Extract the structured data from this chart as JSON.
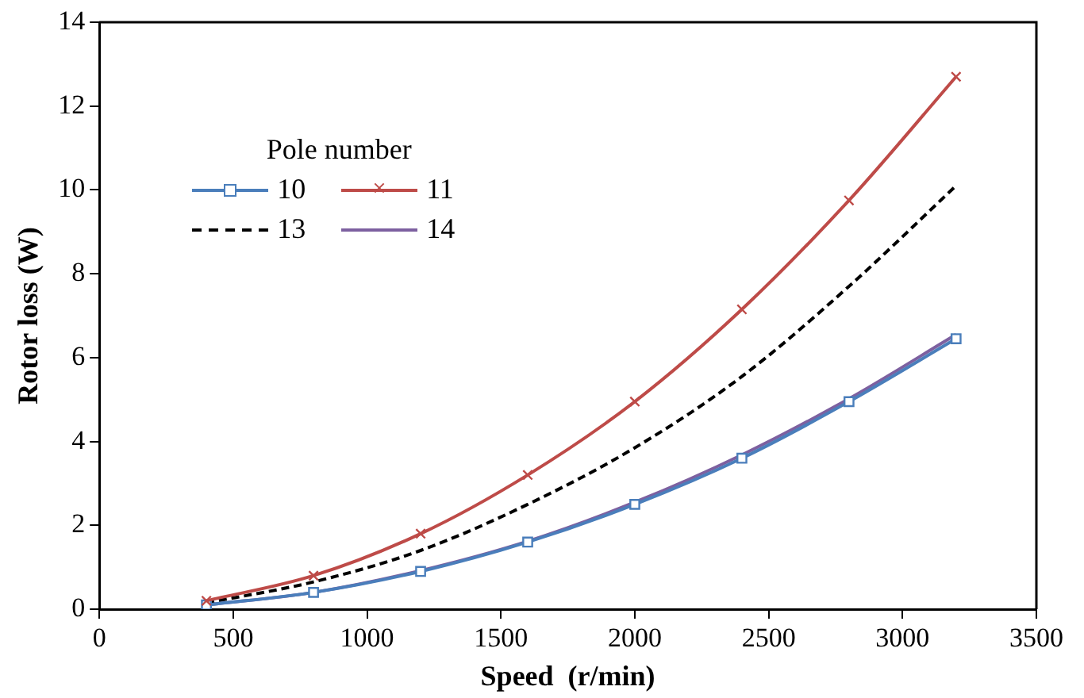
{
  "chart_data": {
    "type": "line",
    "xlabel": "Speed  (r/min)",
    "ylabel": "Rotor loss (W)",
    "legend_title": "Pole number",
    "legend": "top left",
    "grid": false,
    "x": [
      400,
      800,
      1200,
      1600,
      2000,
      2400,
      2800,
      3200
    ],
    "xlim": [
      0,
      3500
    ],
    "xticks": [
      0,
      500,
      1000,
      1500,
      2000,
      2500,
      3000,
      3500
    ],
    "ylim": [
      0,
      14
    ],
    "yticks": [
      0,
      2,
      4,
      6,
      8,
      10,
      12,
      14
    ],
    "series": [
      {
        "name": "10",
        "color": "#4a7ebb",
        "marker": "square",
        "line_style": "solid",
        "values": [
          0.1,
          0.4,
          0.9,
          1.6,
          2.5,
          3.6,
          4.95,
          6.45
        ]
      },
      {
        "name": "11",
        "color": "#be4b48",
        "marker": "cross",
        "line_style": "solid",
        "values": [
          0.2,
          0.8,
          1.8,
          3.2,
          4.95,
          7.15,
          9.75,
          12.7
        ]
      },
      {
        "name": "13",
        "color": "#000000",
        "marker": "none",
        "line_style": "dashed",
        "values": [
          0.15,
          0.65,
          1.4,
          2.5,
          3.85,
          5.55,
          7.7,
          10.1
        ]
      },
      {
        "name": "14",
        "color": "#7d60a0",
        "marker": "none",
        "line_style": "solid",
        "values": [
          0.1,
          0.4,
          0.92,
          1.62,
          2.55,
          3.68,
          5.02,
          6.55
        ]
      }
    ]
  }
}
